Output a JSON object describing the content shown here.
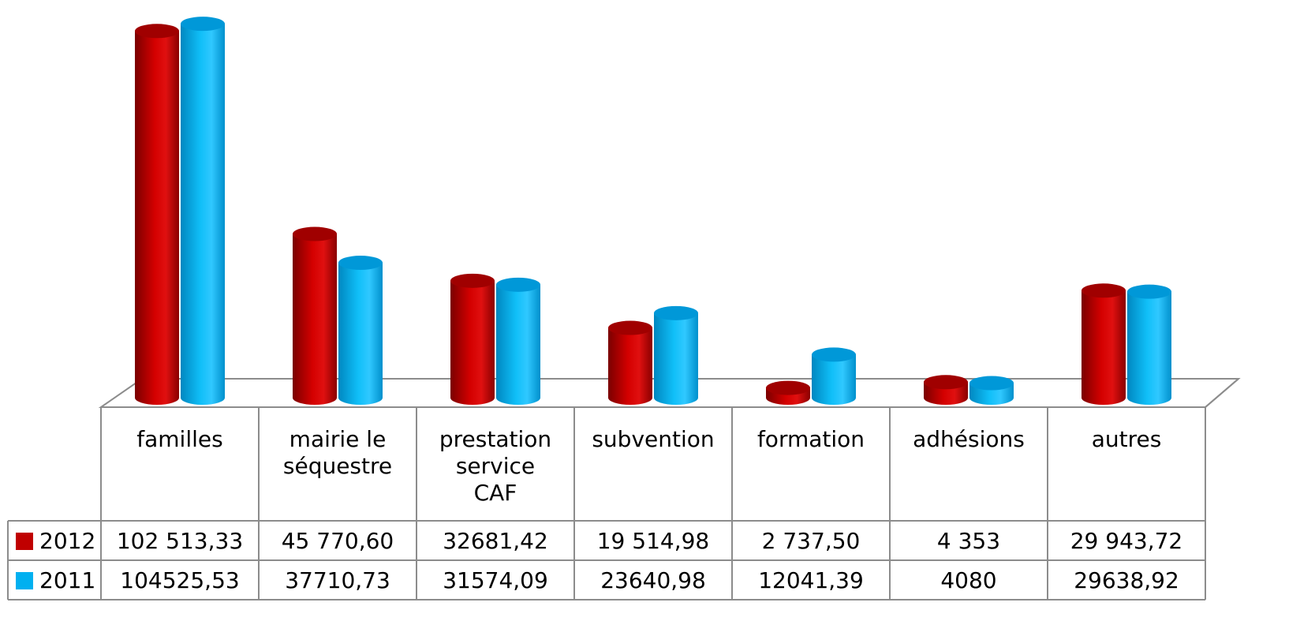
{
  "chart_data": {
    "type": "bar",
    "style": "3d-cylinder",
    "categories": [
      [
        "familles"
      ],
      [
        "mairie le",
        "séquestre"
      ],
      [
        "prestation",
        "service",
        "CAF"
      ],
      [
        "subvention"
      ],
      [
        "formation"
      ],
      [
        "adhésions"
      ],
      [
        "autres"
      ]
    ],
    "series": [
      {
        "name": "2012",
        "color": "#c00000",
        "values": [
          102513.33,
          45770.6,
          32681.42,
          19514.98,
          2737.5,
          4353,
          29943.72
        ],
        "labels": [
          "102 513,33",
          "45 770,60",
          "32681,42",
          "19 514,98",
          "2 737,50",
          "4 353",
          "29 943,72"
        ]
      },
      {
        "name": "2011",
        "color": "#00b0f0",
        "values": [
          104525.53,
          37710.73,
          31574.09,
          23640.98,
          12041.39,
          4080,
          29638.92
        ],
        "labels": [
          "104525,53",
          "37710,73",
          "31574,09",
          "23640,98",
          "12041,39",
          "4080",
          "29638,92"
        ]
      }
    ],
    "title": "",
    "xlabel": "",
    "ylabel": "",
    "ylim": [
      0,
      105000
    ],
    "grid": false,
    "legend": "data-table"
  }
}
